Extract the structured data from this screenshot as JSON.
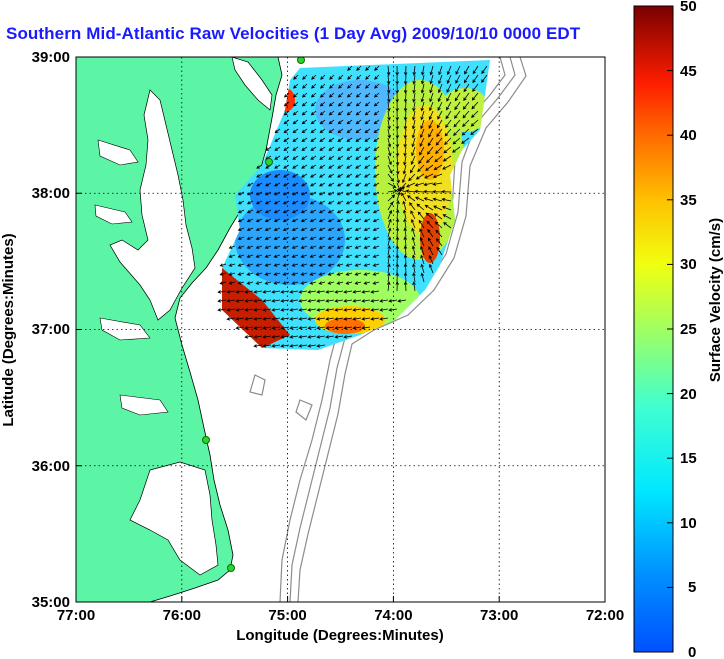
{
  "title": "Southern Mid-Atlantic Raw Velocities (1 Day Avg) 2009/10/10 0000 EDT",
  "xlabel": "Longitude (Degrees:Minutes)",
  "ylabel": "Latitude (Degrees:Minutes)",
  "colorbar_label": "Surface Velocity (cm/s)",
  "x_ticks": [
    "77:00",
    "76:00",
    "75:00",
    "74:00",
    "73:00",
    "72:00"
  ],
  "y_ticks": [
    "39:00",
    "38:00",
    "37:00",
    "36:00",
    "35:00"
  ],
  "colorbar_ticks": [
    "50",
    "45",
    "40",
    "35",
    "30",
    "25",
    "20",
    "15",
    "10",
    "5",
    "0"
  ],
  "colors": {
    "land": "#5cf5a6",
    "title": "#1a1aff",
    "station": "#2bd62b",
    "bathymetry": "#8c8c8c"
  },
  "map": {
    "lon_range": [
      -77,
      -72
    ],
    "lat_range": [
      35,
      39
    ],
    "colorbar_range": [
      0,
      50
    ]
  }
}
